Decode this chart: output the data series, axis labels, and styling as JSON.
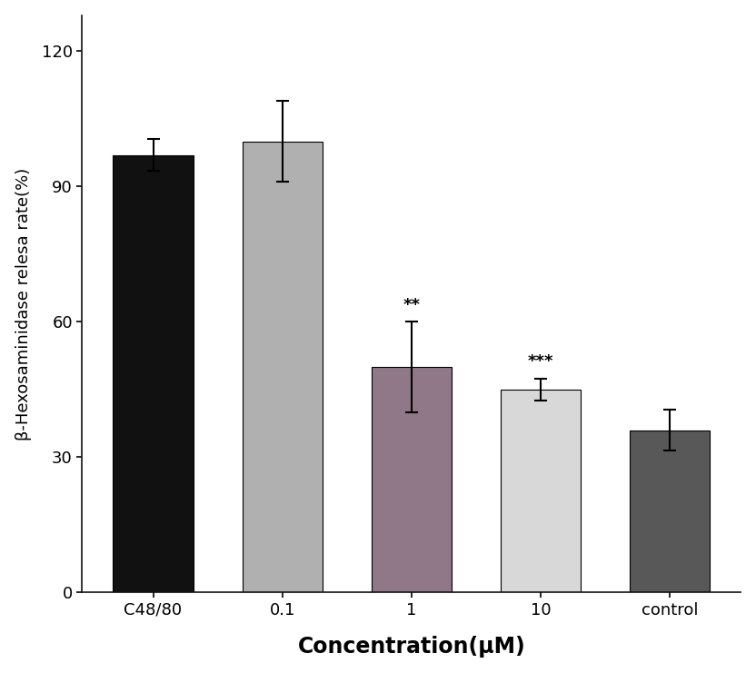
{
  "categories": [
    "C48/80",
    "0.1",
    "1",
    "10",
    "control"
  ],
  "values": [
    97.0,
    100.0,
    50.0,
    45.0,
    36.0
  ],
  "errors": [
    3.5,
    9.0,
    10.0,
    2.5,
    4.5
  ],
  "bar_colors": [
    "#111111",
    "#b0b0b0",
    "#907888",
    "#d8d8d8",
    "#585858"
  ],
  "significance": [
    "",
    "",
    "**",
    "***",
    ""
  ],
  "ylabel": "β-Hexosaminidase relesa rate(%)",
  "xlabel": "Concentration(μM)",
  "ylim": [
    0,
    128
  ],
  "yticks": [
    0,
    30,
    60,
    90,
    120
  ],
  "bar_width": 0.62,
  "figsize": [
    8.32,
    7.41
  ],
  "dpi": 100,
  "xlabel_fontsize": 17,
  "ylabel_fontsize": 13,
  "tick_fontsize": 13,
  "sig_fontsize": 13,
  "spine_color": "#111111"
}
